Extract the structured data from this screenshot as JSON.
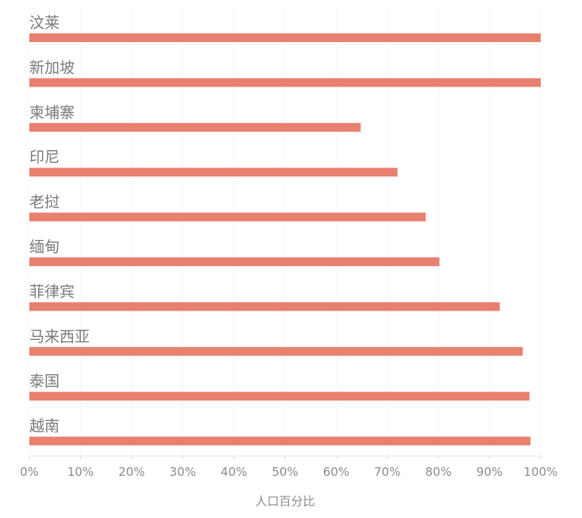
{
  "chart_data": {
    "type": "bar",
    "orientation": "horizontal",
    "categories": [
      "汶莱",
      "新加坡",
      "柬埔寨",
      "印尼",
      "老挝",
      "缅甸",
      "菲律宾",
      "马来西亚",
      "泰国",
      "越南"
    ],
    "values": [
      100,
      100,
      64.8,
      72,
      77.5,
      80.2,
      92,
      96.5,
      97.8,
      98
    ],
    "xlabel": "人口百分比",
    "ylabel": "",
    "xlim": [
      0,
      100
    ],
    "x_ticks": [
      "0%",
      "10%",
      "20%",
      "30%",
      "40%",
      "50%",
      "60%",
      "70%",
      "80%",
      "90%",
      "100%"
    ],
    "grid": true,
    "bar_color": "#e8806f",
    "grid_color": "#f5f5f5",
    "axis_color": "#e0e0e0"
  }
}
